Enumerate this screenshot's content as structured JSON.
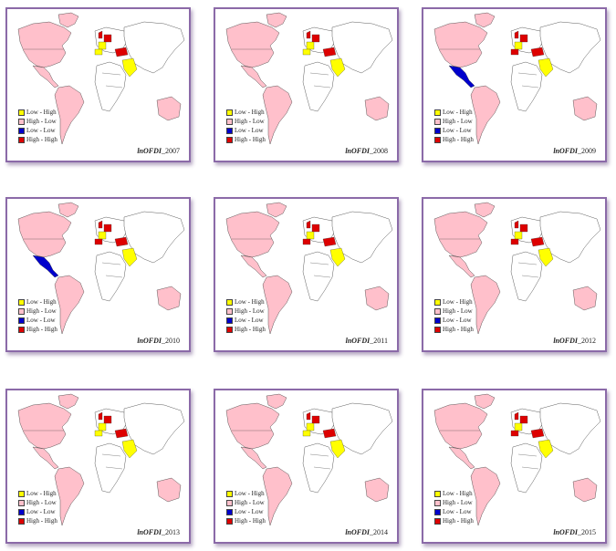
{
  "colors": {
    "low_high": "#ffff00",
    "high_low": "#ffc0cb",
    "low_low": "#0000cc",
    "high_high": "#dd0000",
    "border": "#8b6aa8"
  },
  "legend": [
    "Low - High",
    "High - Low",
    "Low - Low",
    "High - High"
  ],
  "legend_keys": [
    "low_high",
    "high_low",
    "low_low",
    "high_high"
  ],
  "panels": [
    {
      "var": "lnOFDI",
      "year": "_2007",
      "lowlow_mexico": false,
      "spain_red": false
    },
    {
      "var": "lnOFDI",
      "year": "_2008",
      "lowlow_mexico": false,
      "spain_red": false
    },
    {
      "var": "lnOFDI",
      "year": "_2009",
      "lowlow_mexico": true,
      "spain_red": true
    },
    {
      "var": "lnOFDI",
      "year": "_2010",
      "lowlow_mexico": true,
      "spain_red": true
    },
    {
      "var": "lnOFDI",
      "year": "_2011",
      "lowlow_mexico": false,
      "spain_red": true
    },
    {
      "var": "lnOFDI",
      "year": "_2012",
      "lowlow_mexico": false,
      "spain_red": true
    },
    {
      "var": "lnOFDI",
      "year": "_2013",
      "lowlow_mexico": false,
      "spain_red": false
    },
    {
      "var": "lnOFDI",
      "year": "_2014",
      "lowlow_mexico": false,
      "spain_red": false
    },
    {
      "var": "lnOFDI",
      "year": "_2015",
      "lowlow_mexico": false,
      "spain_red": true
    }
  ]
}
